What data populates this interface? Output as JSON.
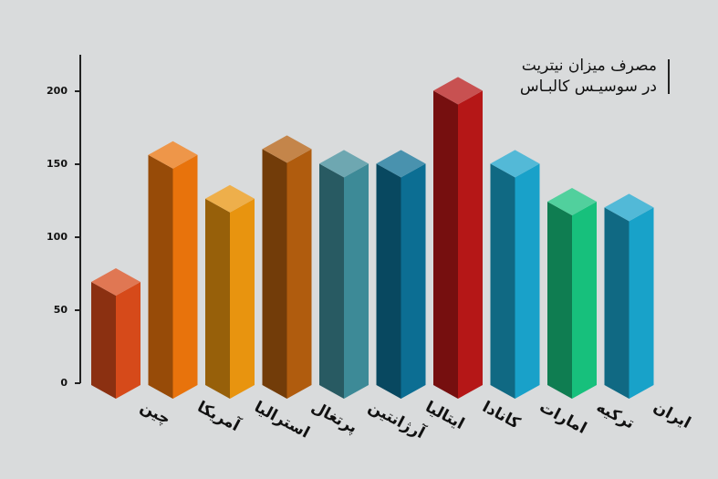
{
  "chart_data": {
    "type": "bar3d",
    "title": "مصرف میزان نیتریت",
    "subtitle": "در سوسیـس کالبـاس",
    "categories": [
      "چین",
      "آمریکا",
      "استرالیا",
      "پرتغال",
      "آرژانتین",
      "ایتالیا",
      "کانادا",
      "امارات",
      "ترکیه",
      "ایران"
    ],
    "values": [
      60,
      147,
      117,
      151,
      141,
      141,
      191,
      141,
      115,
      111
    ],
    "colors": [
      "#d64a1a",
      "#e8730c",
      "#e8940f",
      "#b05c0e",
      "#3d8a97",
      "#0c6e93",
      "#b51717",
      "#19a1c9",
      "#17c07c",
      "#18a2c9"
    ],
    "ylim": [
      0,
      225
    ],
    "yticks": [
      0,
      50,
      100,
      150,
      200
    ],
    "grid": false
  }
}
